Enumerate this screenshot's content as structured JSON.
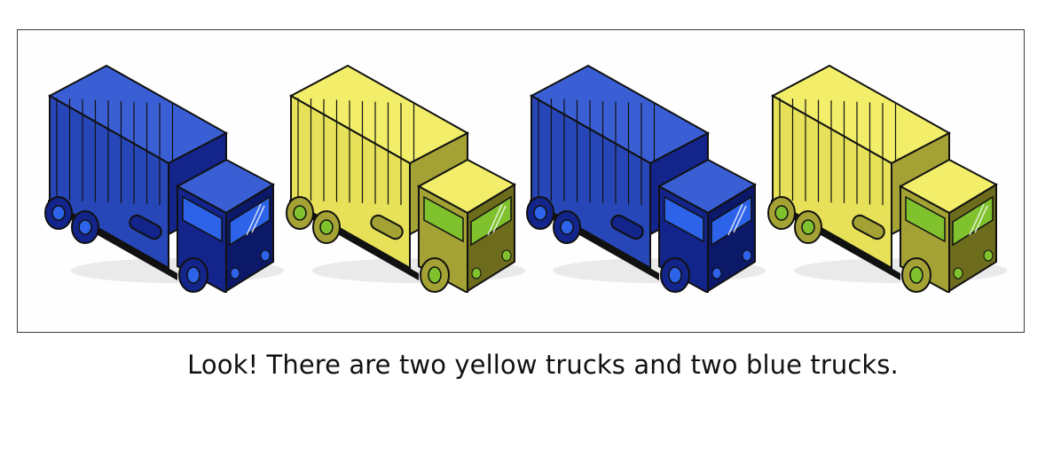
{
  "caption": "Look! There are two yellow trucks and two blue trucks.",
  "colors": {
    "blue": {
      "top": "#3a5fd4",
      "side": "#2747b8",
      "dark": "#13248a",
      "glass": "#2c63e8",
      "darkest": "#0c1868"
    },
    "yellow": {
      "top": "#f2ee6a",
      "side": "#e6e158",
      "dark": "#a4a234",
      "glass": "#7fc22e",
      "darkest": "#6d6b1c"
    }
  },
  "trucks": [
    {
      "color": "blue"
    },
    {
      "color": "yellow"
    },
    {
      "color": "blue"
    },
    {
      "color": "yellow"
    }
  ]
}
